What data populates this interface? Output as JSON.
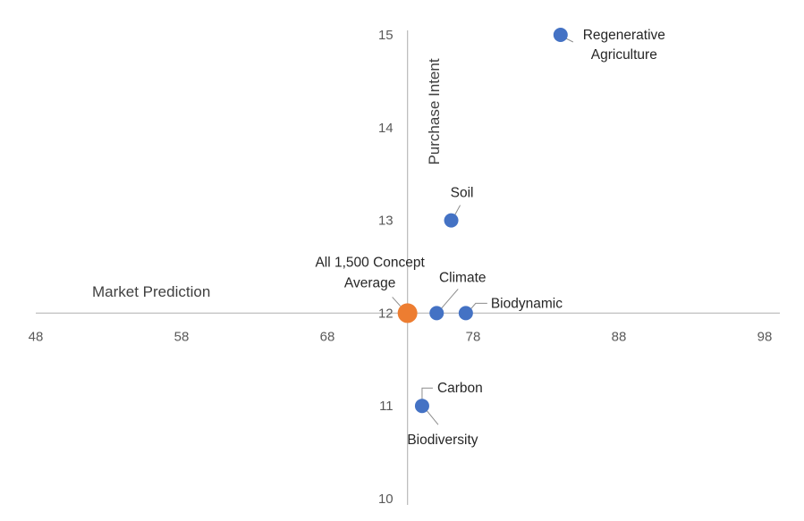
{
  "chart_data": {
    "type": "scatter",
    "xlabel": "Market Prediction",
    "ylabel": "Purchase Intent",
    "xlim": [
      48,
      98
    ],
    "ylim": [
      10,
      15
    ],
    "x_ticks": [
      48,
      58,
      68,
      78,
      88,
      98
    ],
    "y_ticks": [
      10,
      11,
      12,
      13,
      14,
      15
    ],
    "crossing": {
      "x": 73.5,
      "y": 12
    },
    "grid": false,
    "legend": "none",
    "colors": {
      "concept": "#4472c4",
      "average": "#ed7d31",
      "axis": "#bfbfbf"
    },
    "points": [
      {
        "id": "regenerative-agriculture",
        "label": [
          "Regenerative",
          "Agriculture"
        ],
        "x": 84,
        "y": 15,
        "kind": "concept"
      },
      {
        "id": "soil",
        "label": [
          "Soil"
        ],
        "x": 76.5,
        "y": 13,
        "kind": "concept"
      },
      {
        "id": "climate",
        "label": [
          "Climate"
        ],
        "x": 75.5,
        "y": 12,
        "kind": "concept"
      },
      {
        "id": "biodynamic",
        "label": [
          "Biodynamic"
        ],
        "x": 77.5,
        "y": 12,
        "kind": "concept"
      },
      {
        "id": "carbon",
        "label": [
          "Carbon"
        ],
        "x": 74.5,
        "y": 11,
        "kind": "concept"
      },
      {
        "id": "biodiversity",
        "label": [
          "Biodiversity"
        ],
        "x": 74.5,
        "y": 11,
        "kind": "concept"
      },
      {
        "id": "all-concept-average",
        "label": [
          "All 1,500 Concept",
          "Average"
        ],
        "x": 73.5,
        "y": 12,
        "kind": "average"
      }
    ]
  }
}
